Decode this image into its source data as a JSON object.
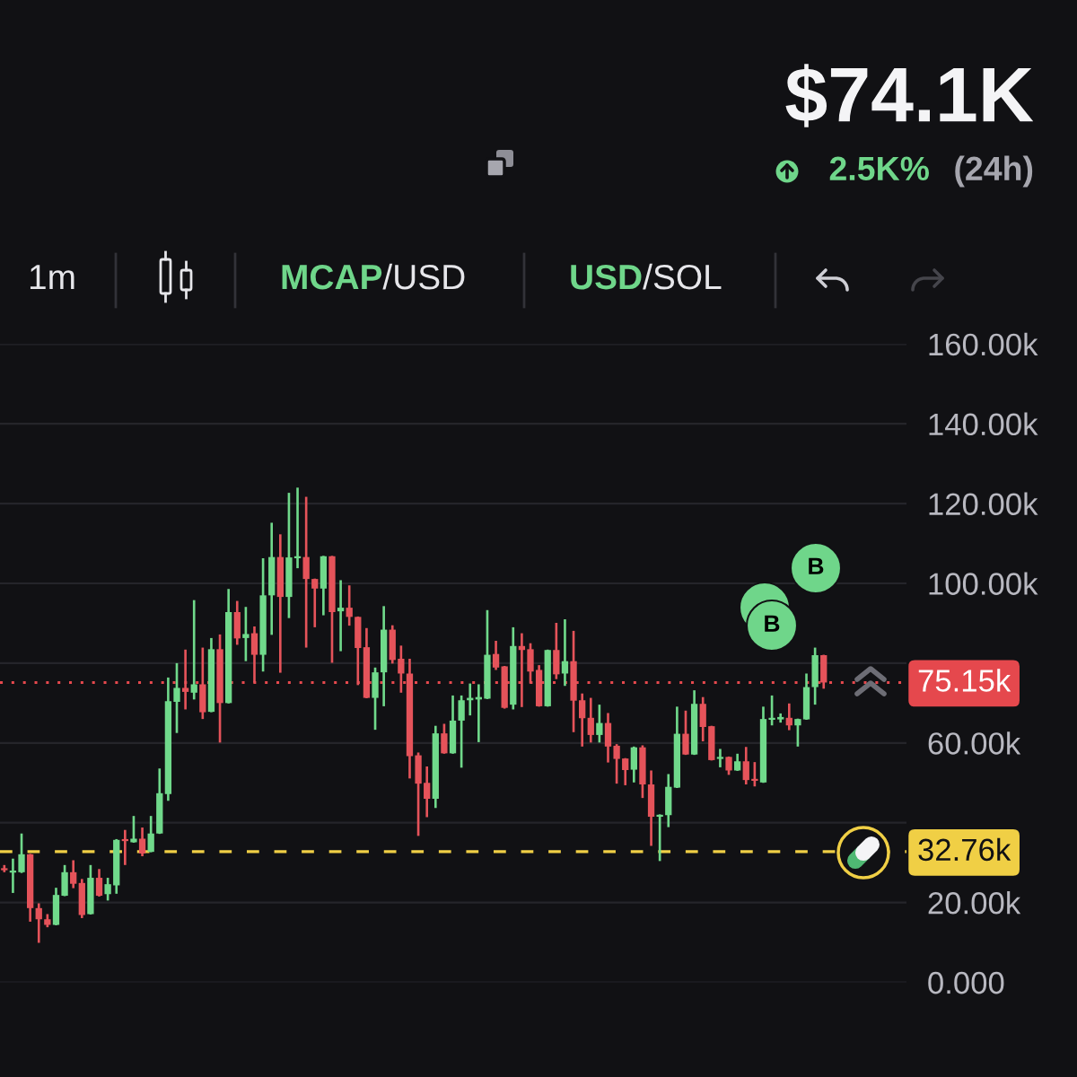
{
  "chart_data": {
    "type": "candlestick",
    "title": "$74.1K",
    "annotations": [
      "2.5K%",
      "(24h)",
      "1m",
      "MCAP",
      "/USD",
      "USD",
      "/SOL",
      "B",
      "B"
    ],
    "categories": [
      null,
      null,
      null,
      null,
      null,
      null,
      null,
      null,
      null,
      null,
      null,
      null,
      null,
      null,
      null,
      null,
      null,
      null,
      null,
      null,
      null,
      null,
      null,
      null,
      null,
      null,
      null,
      null,
      null,
      null,
      null,
      null,
      null,
      null,
      null,
      null,
      null,
      null,
      null,
      null,
      null,
      null,
      null,
      null,
      null,
      null,
      null,
      null,
      null,
      null,
      null,
      null,
      null,
      null,
      null,
      null,
      null,
      null,
      null,
      null,
      null,
      null,
      null,
      null,
      null,
      null,
      null,
      null,
      null,
      null,
      null,
      null,
      null,
      null,
      null,
      null,
      null,
      null,
      null,
      null,
      null,
      null,
      null,
      null,
      null,
      null,
      null,
      null,
      null,
      null,
      null,
      null,
      null,
      null,
      null,
      null
    ],
    "ohlc": [
      [
        28600,
        29400,
        27600,
        28100
      ],
      [
        27500,
        31000,
        22400,
        28000
      ],
      [
        27600,
        37300,
        27400,
        32100
      ],
      [
        32100,
        32200,
        15200,
        18600
      ],
      [
        18600,
        19800,
        9900,
        15800
      ],
      [
        15800,
        17100,
        13800,
        14400
      ],
      [
        14400,
        23700,
        14300,
        21900
      ],
      [
        21700,
        29400,
        21600,
        27600
      ],
      [
        27600,
        30600,
        23600,
        24700
      ],
      [
        24900,
        25900,
        16100,
        16900
      ],
      [
        17100,
        29400,
        17000,
        26200
      ],
      [
        26200,
        28400,
        21500,
        21700
      ],
      [
        22100,
        26200,
        20500,
        24600
      ],
      [
        24300,
        35900,
        22200,
        35700
      ],
      [
        35900,
        38200,
        29400,
        35400
      ],
      [
        35100,
        41700,
        35000,
        36000
      ],
      [
        36000,
        38800,
        31600,
        32300
      ],
      [
        32700,
        41700,
        32600,
        37300
      ],
      [
        37300,
        53600,
        37200,
        47400
      ],
      [
        47200,
        76400,
        45500,
        70500
      ],
      [
        70300,
        80000,
        62500,
        73800
      ],
      [
        73800,
        83400,
        68400,
        72800
      ],
      [
        72600,
        95800,
        70900,
        74700
      ],
      [
        74700,
        83900,
        66000,
        67700
      ],
      [
        67800,
        86300,
        67700,
        83500
      ],
      [
        83500,
        87200,
        60100,
        70000
      ],
      [
        70000,
        98600,
        69900,
        92800
      ],
      [
        92800,
        95600,
        84600,
        86200
      ],
      [
        86300,
        94100,
        80500,
        87300
      ],
      [
        87500,
        89200,
        75100,
        82100
      ],
      [
        82100,
        106300,
        77900,
        97000
      ],
      [
        97000,
        115200,
        87100,
        106600
      ],
      [
        106600,
        112300,
        77600,
        96600
      ],
      [
        96600,
        122700,
        91300,
        106500
      ],
      [
        106300,
        124000,
        103800,
        106800
      ],
      [
        106600,
        121700,
        83900,
        101100
      ],
      [
        101100,
        101200,
        89000,
        98700
      ],
      [
        98700,
        106900,
        92000,
        106800
      ],
      [
        106800,
        106900,
        80100,
        92800
      ],
      [
        93000,
        100800,
        83000,
        93900
      ],
      [
        93900,
        99500,
        89400,
        91600
      ],
      [
        91600,
        91700,
        74500,
        83800
      ],
      [
        84000,
        88800,
        71200,
        71300
      ],
      [
        71300,
        78900,
        63300,
        77700
      ],
      [
        77700,
        94300,
        69200,
        88400
      ],
      [
        88400,
        89500,
        79900,
        80800
      ],
      [
        81100,
        84400,
        72600,
        77400
      ],
      [
        77400,
        81100,
        51100,
        56700
      ],
      [
        56900,
        57600,
        36700,
        49800
      ],
      [
        50000,
        54100,
        41400,
        46000
      ],
      [
        46000,
        64300,
        43700,
        62400
      ],
      [
        62400,
        64800,
        57300,
        57400
      ],
      [
        57400,
        71900,
        57300,
        65600
      ],
      [
        65600,
        71900,
        53800,
        70700
      ],
      [
        70700,
        74900,
        66900,
        71300
      ],
      [
        70900,
        74700,
        60200,
        71500
      ],
      [
        71100,
        93300,
        71000,
        82100
      ],
      [
        82300,
        85600,
        78300,
        78900
      ],
      [
        79200,
        79300,
        68600,
        68800
      ],
      [
        69600,
        89000,
        68400,
        84300
      ],
      [
        84300,
        87500,
        69000,
        83300
      ],
      [
        83500,
        85000,
        74900,
        77900
      ],
      [
        78300,
        79500,
        69100,
        69200
      ],
      [
        69200,
        83400,
        69100,
        83300
      ],
      [
        83300,
        90100,
        76000,
        77200
      ],
      [
        77400,
        91000,
        74300,
        80500
      ],
      [
        80500,
        88100,
        62700,
        70600
      ],
      [
        70700,
        72400,
        59100,
        66200
      ],
      [
        66300,
        71300,
        60100,
        62000
      ],
      [
        62000,
        69600,
        60100,
        65000
      ],
      [
        65000,
        67500,
        55100,
        59100
      ],
      [
        59300,
        59700,
        49800,
        56000
      ],
      [
        56100,
        56200,
        49400,
        53200
      ],
      [
        53300,
        59100,
        50100,
        58900
      ],
      [
        58900,
        59400,
        46200,
        49600
      ],
      [
        49600,
        53100,
        34200,
        41500
      ],
      [
        41500,
        42100,
        30400,
        42000
      ],
      [
        41900,
        52200,
        38900,
        49000
      ],
      [
        48800,
        69100,
        48700,
        62300
      ],
      [
        62300,
        68100,
        57000,
        57100
      ],
      [
        57100,
        73200,
        57000,
        69800
      ],
      [
        69800,
        71500,
        60400,
        64000
      ],
      [
        64200,
        64300,
        55600,
        55700
      ],
      [
        56000,
        58500,
        53900,
        56500
      ],
      [
        56500,
        56600,
        52000,
        53100
      ],
      [
        53100,
        57300,
        53000,
        55400
      ],
      [
        55400,
        59000,
        49600,
        50700
      ],
      [
        51000,
        55200,
        49100,
        50500
      ],
      [
        50100,
        69100,
        50000,
        66000
      ],
      [
        65800,
        71900,
        64400,
        66300
      ],
      [
        65900,
        67400,
        65100,
        66500
      ],
      [
        66300,
        69900,
        63200,
        64400
      ],
      [
        64400,
        66100,
        59100,
        66000
      ],
      [
        65900,
        77400,
        65800,
        74000
      ],
      [
        74000,
        83900,
        69600,
        82000
      ],
      [
        82000,
        82100,
        73600,
        75150
      ]
    ],
    "colors": [
      "#e5535a",
      "#70d98b",
      "#70d98b",
      "#e5535a",
      "#e5535a",
      "#e5535a",
      "#70d98b",
      "#70d98b",
      "#e5535a",
      "#e5535a",
      "#70d98b",
      "#e5535a",
      "#70d98b",
      "#70d98b",
      "#e5535a",
      "#70d98b",
      "#e5535a",
      "#70d98b",
      "#70d98b",
      "#70d98b",
      "#70d98b",
      "#e5535a",
      "#70d98b",
      "#e5535a",
      "#70d98b",
      "#e5535a",
      "#70d98b",
      "#e5535a",
      "#70d98b",
      "#e5535a",
      "#70d98b",
      "#70d98b",
      "#e5535a",
      "#70d98b",
      "#70d98b",
      "#e5535a",
      "#e5535a",
      "#70d98b",
      "#e5535a",
      "#70d98b",
      "#e5535a",
      "#e5535a",
      "#e5535a",
      "#70d98b",
      "#70d98b",
      "#e5535a",
      "#e5535a",
      "#e5535a",
      "#e5535a",
      "#e5535a",
      "#70d98b",
      "#e5535a",
      "#70d98b",
      "#70d98b",
      "#70d98b",
      "#70d98b",
      "#70d98b",
      "#e5535a",
      "#e5535a",
      "#70d98b",
      "#e5535a",
      "#e5535a",
      "#e5535a",
      "#70d98b",
      "#e5535a",
      "#70d98b",
      "#e5535a",
      "#e5535a",
      "#e5535a",
      "#70d98b",
      "#e5535a",
      "#e5535a",
      "#e5535a",
      "#70d98b",
      "#e5535a",
      "#e5535a",
      "#70d98b",
      "#70d98b",
      "#70d98b",
      "#e5535a",
      "#70d98b",
      "#e5535a",
      "#e5535a",
      "#70d98b",
      "#e5535a",
      "#70d98b",
      "#e5535a",
      "#e5535a",
      "#70d98b",
      "#70d98b",
      "#70d98b",
      "#e5535a",
      "#70d98b",
      "#70d98b",
      "#70d98b",
      "#e5535a"
    ],
    "ylim": [
      0,
      160000
    ],
    "yticks": [
      {
        "value": 0,
        "label": "0.000"
      },
      {
        "value": 20000,
        "label": "20.00k"
      },
      {
        "value": 40000,
        "label": null
      },
      {
        "value": 60000,
        "label": "60.00k"
      },
      {
        "value": 80000,
        "label": null
      },
      {
        "value": 100000,
        "label": "100.00k"
      },
      {
        "value": 120000,
        "label": "120.00k"
      },
      {
        "value": 140000,
        "label": "140.00k"
      },
      {
        "value": 160000,
        "label": "160.00k"
      }
    ],
    "ref_lines": [
      {
        "axis": "y",
        "value": 75150,
        "label": "75.15k",
        "color": "#e5484d",
        "line_style": "dotted"
      },
      {
        "axis": "y",
        "value": 32760,
        "label": "32.76k",
        "color": "#f0cf45",
        "line_style": "dashed"
      }
    ],
    "grid": "y",
    "tick_labels": "y"
  }
}
